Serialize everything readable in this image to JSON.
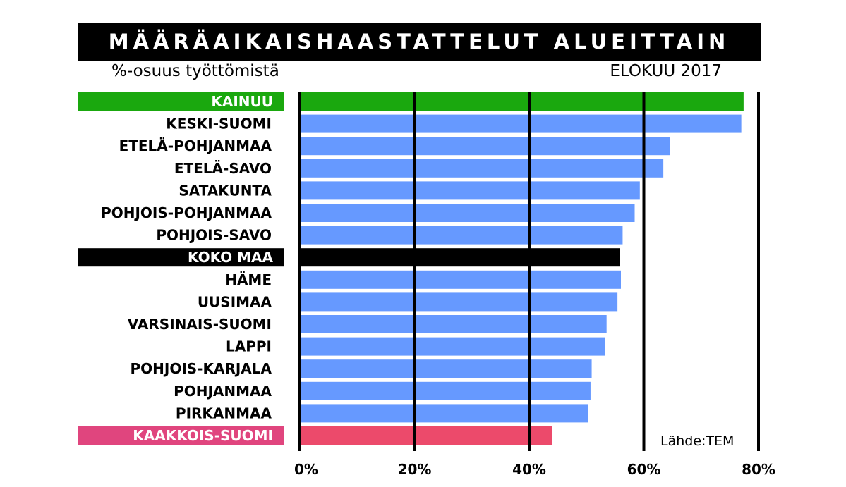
{
  "title": "MÄÄRÄAIKAISHAASTATTELUT ALUEITTAIN",
  "subtitle": "%-osuus työttömistä",
  "date_label": "ELOKUU 2017",
  "source": "Lähde:TEM",
  "colors": {
    "default_bar": "#6699ff",
    "highlight_green": "#1aa80e",
    "highlight_black": "#000000",
    "highlight_pink": "#e0457e",
    "pink_bar": "#ec4a6b"
  },
  "chart_data": {
    "type": "bar",
    "orientation": "horizontal",
    "categories": [
      "KAINUU",
      "KESKI-SUOMI",
      "ETELÄ-POHJANMAA",
      "ETELÄ-SAVO",
      "SATAKUNTA",
      "POHJOIS-POHJANMAA",
      "POHJOIS-SAVO",
      "KOKO MAA",
      "HÄME",
      "UUSIMAA",
      "VARSINAIS-SUOMI",
      "LAPPI",
      "POHJOIS-KARJALA",
      "POHJANMAA",
      "PIRKANMAA",
      "KAAKKOIS-SUOMI"
    ],
    "values": [
      77.4,
      77.0,
      64.6,
      63.4,
      59.3,
      58.4,
      56.3,
      55.8,
      56.0,
      55.4,
      53.5,
      53.2,
      50.9,
      50.7,
      50.3,
      44.0
    ],
    "highlights": {
      "KAINUU": "green",
      "KOKO MAA": "black",
      "KAAKKOIS-SUOMI": "pink"
    },
    "xlim": [
      0,
      80
    ],
    "xticks": [
      "0%",
      "20%",
      "40%",
      "60%",
      "80%"
    ],
    "grid": true,
    "legend": "none"
  }
}
